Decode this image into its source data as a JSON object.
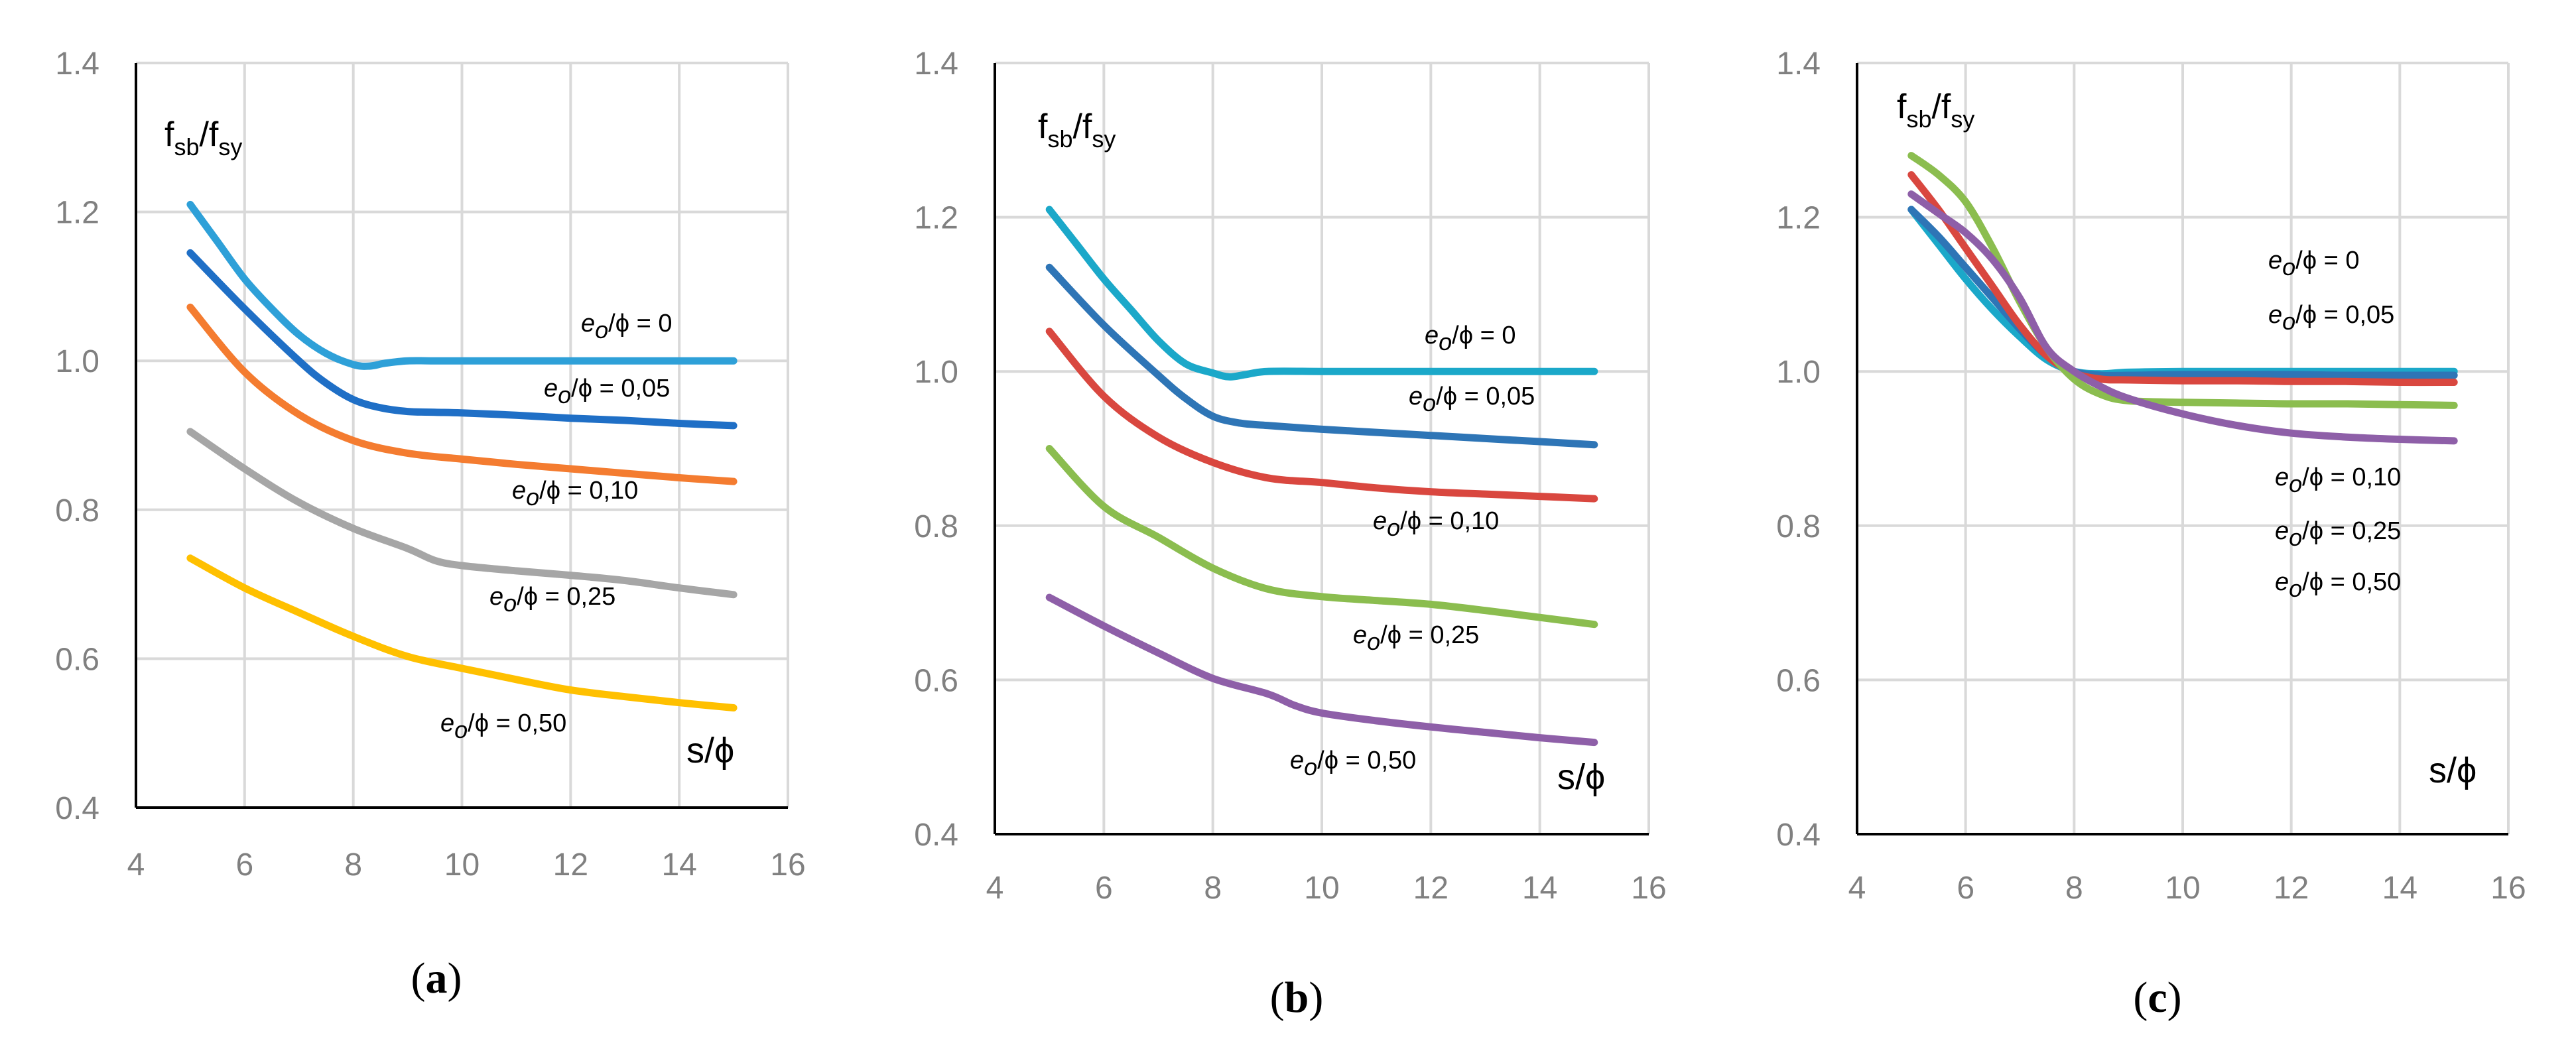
{
  "chart_data": [
    {
      "panel": "(a)",
      "type": "line",
      "ylabel": {
        "main": "f",
        "sub1": "sb",
        "slash": "/f",
        "sub2": "sy"
      },
      "xlabel": "s/ϕ",
      "xlim": [
        4,
        16
      ],
      "ylim": [
        0.4,
        1.4
      ],
      "xticks": [
        "4",
        "6",
        "8",
        "10",
        "12",
        "14",
        "16"
      ],
      "yticks": [
        "0.4",
        "0.6",
        "0.8",
        "1.0",
        "1.2",
        "1.4"
      ],
      "grid": true,
      "series": [
        {
          "name": "e_o/ϕ = 0",
          "label_prefix": "e",
          "label_sub": "o",
          "label_rest": "/ϕ = 0",
          "color": "#2ea0d8",
          "x": [
            5,
            5.5,
            6,
            6.5,
            7,
            7.5,
            8,
            8.3,
            8.6,
            9,
            9.5,
            10,
            11,
            12,
            13,
            14,
            15
          ],
          "y": [
            1.21,
            1.16,
            1.11,
            1.07,
            1.035,
            1.01,
            0.995,
            0.993,
            0.997,
            1.0,
            1.0,
            1.0,
            1.0,
            1.0,
            1.0,
            1.0,
            1.0
          ]
        },
        {
          "name": "e_o/ϕ = 0,05",
          "label_prefix": "e",
          "label_sub": "o",
          "label_rest": "/ϕ = 0,05",
          "color": "#1f6fc6",
          "x": [
            5,
            6,
            7,
            7.5,
            8,
            8.5,
            9,
            9.5,
            10,
            11,
            12,
            13,
            14,
            15
          ],
          "y": [
            1.145,
            1.07,
            1.0,
            0.97,
            0.948,
            0.937,
            0.932,
            0.931,
            0.93,
            0.927,
            0.923,
            0.92,
            0.916,
            0.913
          ]
        },
        {
          "name": "e_o/ϕ = 0,10",
          "label_prefix": "e",
          "label_sub": "o",
          "label_rest": "/ϕ = 0,10",
          "color": "#f47c30",
          "x": [
            5,
            6,
            7,
            8,
            9,
            10,
            11,
            12,
            13,
            14,
            15
          ],
          "y": [
            1.072,
            0.985,
            0.928,
            0.893,
            0.876,
            0.868,
            0.861,
            0.855,
            0.849,
            0.843,
            0.838
          ]
        },
        {
          "name": "e_o/ϕ = 0,25",
          "label_prefix": "e",
          "label_sub": "o",
          "label_rest": "/ϕ = 0,25",
          "color": "#a6a6a6",
          "x": [
            5,
            6,
            7,
            8,
            9,
            9.5,
            10,
            11,
            12,
            13,
            14,
            15
          ],
          "y": [
            0.905,
            0.855,
            0.81,
            0.775,
            0.748,
            0.732,
            0.725,
            0.718,
            0.712,
            0.705,
            0.695,
            0.686
          ]
        },
        {
          "name": "e_o/ϕ = 0,50",
          "label_prefix": "e",
          "label_sub": "o",
          "label_rest": "/ϕ = 0,50",
          "color": "#ffc000",
          "x": [
            5,
            6,
            7,
            8,
            9,
            10,
            11,
            12,
            13,
            14,
            15
          ],
          "y": [
            0.735,
            0.695,
            0.662,
            0.63,
            0.603,
            0.587,
            0.572,
            0.558,
            0.549,
            0.541,
            0.534
          ]
        }
      ]
    },
    {
      "panel": "(b)",
      "type": "line",
      "ylabel": {
        "main": "f",
        "sub1": "sb",
        "slash": "/f",
        "sub2": "sy"
      },
      "xlabel": "s/ϕ",
      "xlim": [
        4,
        16
      ],
      "ylim": [
        0.4,
        1.4
      ],
      "xticks": [
        "4",
        "6",
        "8",
        "10",
        "12",
        "14",
        "16"
      ],
      "yticks": [
        "0.4",
        "0.6",
        "0.8",
        "1.0",
        "1.2",
        "1.4"
      ],
      "grid": true,
      "series": [
        {
          "name": "e_o/ϕ = 0",
          "label_prefix": "e",
          "label_sub": "o",
          "label_rest": "/ϕ = 0",
          "color": "#1ba8c9",
          "x": [
            5,
            5.5,
            6,
            6.5,
            7,
            7.5,
            8,
            8.3,
            8.6,
            9,
            10,
            11,
            12,
            13,
            14,
            15
          ],
          "y": [
            1.21,
            1.165,
            1.12,
            1.08,
            1.04,
            1.01,
            0.998,
            0.993,
            0.996,
            1.0,
            1.0,
            1.0,
            1.0,
            1.0,
            1.0,
            1.0
          ]
        },
        {
          "name": "e_o/ϕ = 0,05",
          "label_prefix": "e",
          "label_sub": "o",
          "label_rest": "/ϕ = 0,05",
          "color": "#2e75b6",
          "x": [
            5,
            6,
            7,
            7.5,
            8,
            8.5,
            9,
            10,
            11,
            12,
            13,
            14,
            15
          ],
          "y": [
            1.135,
            1.06,
            0.995,
            0.965,
            0.942,
            0.933,
            0.93,
            0.925,
            0.921,
            0.917,
            0.913,
            0.909,
            0.905
          ]
        },
        {
          "name": "e_o/ϕ = 0,10",
          "label_prefix": "e",
          "label_sub": "o",
          "label_rest": "/ϕ = 0,10",
          "color": "#d9473f",
          "x": [
            5,
            6,
            7,
            8,
            9,
            10,
            11,
            12,
            13,
            14,
            15
          ],
          "y": [
            1.052,
            0.968,
            0.915,
            0.882,
            0.862,
            0.856,
            0.849,
            0.844,
            0.841,
            0.838,
            0.835
          ]
        },
        {
          "name": "e_o/ϕ = 0,25",
          "label_prefix": "e",
          "label_sub": "o",
          "label_rest": "/ϕ = 0,25",
          "color": "#8bbd4f",
          "x": [
            5,
            6,
            7,
            8,
            9,
            10,
            11,
            12,
            13,
            14,
            15
          ],
          "y": [
            0.9,
            0.825,
            0.785,
            0.745,
            0.718,
            0.708,
            0.703,
            0.698,
            0.69,
            0.681,
            0.672
          ]
        },
        {
          "name": "e_o/ϕ = 0,50",
          "label_prefix": "e",
          "label_sub": "o",
          "label_rest": "/ϕ = 0,50",
          "color": "#8e5fa8",
          "x": [
            5,
            6,
            7,
            8,
            9,
            9.5,
            10,
            11,
            12,
            13,
            14,
            15
          ],
          "y": [
            0.707,
            0.67,
            0.635,
            0.602,
            0.582,
            0.567,
            0.557,
            0.547,
            0.539,
            0.532,
            0.525,
            0.519
          ]
        }
      ]
    },
    {
      "panel": "(c)",
      "type": "line",
      "ylabel": {
        "main": "f",
        "sub1": "sb",
        "slash": "/f",
        "sub2": "sy"
      },
      "xlabel": "s/ϕ",
      "xlim": [
        4,
        16
      ],
      "ylim": [
        0.4,
        1.4
      ],
      "xticks": [
        "4",
        "6",
        "8",
        "10",
        "12",
        "14",
        "16"
      ],
      "yticks": [
        "0.4",
        "0.6",
        "0.8",
        "1.0",
        "1.2",
        "1.4"
      ],
      "grid": true,
      "series": [
        {
          "name": "e_o/ϕ = 0",
          "label_prefix": "e",
          "label_sub": "o",
          "label_rest": "/ϕ = 0",
          "color": "#1ba8c9",
          "x": [
            5,
            5.5,
            6,
            6.5,
            7,
            7.5,
            8,
            8.5,
            9,
            10,
            11,
            12,
            13,
            14,
            15
          ],
          "y": [
            1.21,
            1.165,
            1.12,
            1.08,
            1.045,
            1.015,
            1.0,
            0.997,
            0.999,
            1.0,
            1.0,
            1.0,
            1.0,
            1.0,
            1.0
          ]
        },
        {
          "name": "e_o/ϕ = 0,05",
          "label_prefix": "e",
          "label_sub": "o",
          "label_rest": "/ϕ = 0,05",
          "color": "#2e75b6",
          "x": [
            5,
            5.5,
            6,
            6.5,
            7,
            7.5,
            8,
            8.5,
            9,
            10,
            11,
            12,
            13,
            14,
            15
          ],
          "y": [
            1.21,
            1.175,
            1.135,
            1.095,
            1.055,
            1.02,
            1.0,
            0.995,
            0.995,
            0.996,
            0.996,
            0.996,
            0.995,
            0.995,
            0.995
          ]
        },
        {
          "name": "e_o/ϕ = 0,10",
          "label_prefix": "e",
          "label_sub": "o",
          "label_rest": "/ϕ = 0,10",
          "color": "#d9473f",
          "x": [
            5,
            5.5,
            6,
            6.5,
            7,
            7.5,
            8,
            8.5,
            9,
            10,
            11,
            12,
            13,
            14,
            15
          ],
          "y": [
            1.255,
            1.21,
            1.16,
            1.11,
            1.06,
            1.02,
            0.998,
            0.99,
            0.989,
            0.988,
            0.988,
            0.987,
            0.987,
            0.986,
            0.986
          ]
        },
        {
          "name": "e_o/ϕ = 0,25",
          "label_prefix": "e",
          "label_sub": "o",
          "label_rest": "/ϕ = 0,25",
          "color": "#8bbd4f",
          "x": [
            5,
            5.5,
            6,
            6.5,
            7,
            7.5,
            8,
            8.5,
            9,
            10,
            11,
            12,
            13,
            14,
            15
          ],
          "y": [
            1.28,
            1.255,
            1.22,
            1.16,
            1.09,
            1.03,
            0.99,
            0.97,
            0.962,
            0.96,
            0.959,
            0.958,
            0.958,
            0.957,
            0.956
          ]
        },
        {
          "name": "e_o/ϕ = 0,50",
          "label_prefix": "e",
          "label_sub": "o",
          "label_rest": "/ϕ = 0,50",
          "color": "#8e5fa8",
          "x": [
            5,
            5.5,
            6,
            6.5,
            7,
            7.5,
            8,
            8.5,
            9,
            10,
            11,
            12,
            13,
            14,
            15
          ],
          "y": [
            1.23,
            1.205,
            1.18,
            1.145,
            1.095,
            1.03,
            1.0,
            0.98,
            0.965,
            0.945,
            0.93,
            0.92,
            0.915,
            0.912,
            0.91
          ]
        }
      ]
    }
  ]
}
